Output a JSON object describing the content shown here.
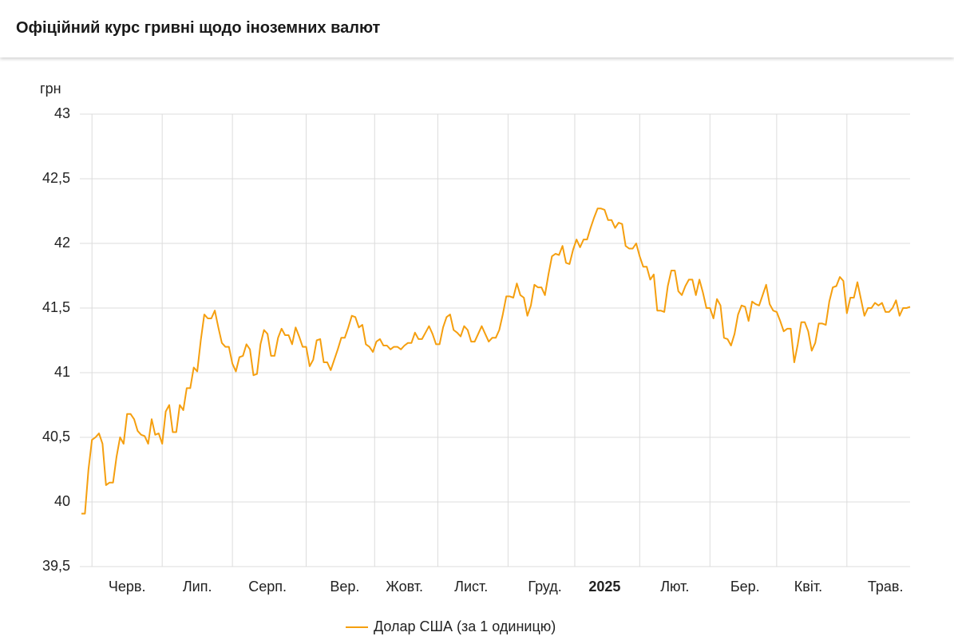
{
  "chart_data": {
    "type": "line",
    "title": "Офіційний курс гривні щодо іноземних валют",
    "y_label": "грн",
    "ylim": [
      39.5,
      43
    ],
    "yticks": [
      {
        "value": 39.5,
        "label": "39,5"
      },
      40,
      {
        "value": 40.5,
        "label": "40,5"
      },
      41,
      {
        "value": 41.5,
        "label": "41,5"
      },
      42,
      {
        "value": 42.5,
        "label": "42,5"
      },
      43
    ],
    "grid": true,
    "categories": [
      null,
      null,
      null,
      null,
      null,
      null,
      null,
      null,
      null,
      null,
      null,
      null,
      null,
      "Черв.",
      null,
      null,
      null,
      null,
      null,
      null,
      null,
      null,
      null,
      null,
      null,
      null,
      null,
      null,
      null,
      null,
      null,
      null,
      null,
      "Лип.",
      null,
      null,
      null,
      null,
      null,
      null,
      null,
      null,
      null,
      null,
      null,
      null,
      null,
      null,
      null,
      null,
      null,
      null,
      null,
      "Серп.",
      null,
      null,
      null,
      null,
      null,
      null,
      null,
      null,
      null,
      null,
      null,
      null,
      null,
      null,
      null,
      null,
      null,
      null,
      null,
      null,
      null,
      "Вер.",
      null,
      null,
      null,
      null,
      null,
      null,
      null,
      null,
      null,
      null,
      null,
      null,
      null,
      null,
      null,
      null,
      "Жовт.",
      null,
      null,
      null,
      null,
      null,
      null,
      null,
      null,
      null,
      null,
      null,
      null,
      null,
      null,
      null,
      null,
      null,
      null,
      "Лист.",
      null,
      null,
      null,
      null,
      null,
      null,
      null,
      null,
      null,
      null,
      null,
      null,
      null,
      null,
      null,
      null,
      null,
      null,
      null,
      null,
      "Груд.",
      null,
      null,
      null,
      null,
      null,
      null,
      null,
      null,
      null,
      null,
      null,
      null,
      null,
      null,
      null,
      null,
      "2025",
      null,
      null,
      null,
      null,
      null,
      null,
      null,
      null,
      null,
      null,
      null,
      null,
      null,
      null,
      null,
      null,
      null,
      null,
      null,
      "Лют.",
      null,
      null,
      null,
      null,
      null,
      null,
      null,
      null,
      null,
      null,
      null,
      null,
      null,
      null,
      null,
      null,
      null,
      null,
      null,
      "Бер.",
      null,
      null,
      null,
      null,
      null,
      null,
      null,
      null,
      null,
      null,
      null,
      null,
      null,
      null,
      null,
      null,
      null,
      "Квіт.",
      null,
      null,
      null,
      null,
      null,
      null,
      null,
      null,
      null,
      null,
      null,
      null,
      null,
      null,
      null,
      null,
      null,
      null,
      null,
      null,
      null,
      "Трав.",
      null,
      null,
      null,
      null,
      null,
      null,
      null
    ],
    "series": [
      {
        "name": "Долар США (за 1 одиницю)",
        "color": "#f59f0f",
        "values": [
          39.91,
          39.91,
          40.25,
          40.48,
          40.5,
          40.53,
          40.45,
          40.13,
          40.15,
          40.15,
          40.35,
          40.5,
          40.45,
          40.68,
          40.68,
          40.64,
          40.55,
          40.52,
          40.51,
          40.45,
          40.64,
          40.52,
          40.53,
          40.45,
          40.7,
          40.75,
          40.54,
          40.54,
          40.75,
          40.71,
          40.88,
          40.88,
          41.04,
          41.01,
          41.25,
          41.45,
          41.42,
          41.42,
          41.48,
          41.35,
          41.23,
          41.2,
          41.2,
          41.07,
          41.01,
          41.12,
          41.13,
          41.22,
          41.18,
          40.98,
          40.99,
          41.22,
          41.33,
          41.3,
          41.13,
          41.13,
          41.27,
          41.34,
          41.29,
          41.29,
          41.22,
          41.35,
          41.28,
          41.2,
          41.2,
          41.05,
          41.1,
          41.25,
          41.26,
          41.08,
          41.08,
          41.02,
          41.1,
          41.18,
          41.27,
          41.27,
          41.35,
          41.44,
          41.43,
          41.35,
          41.37,
          41.22,
          41.2,
          41.16,
          41.24,
          41.26,
          41.21,
          41.21,
          41.18,
          41.2,
          41.2,
          41.18,
          41.21,
          41.23,
          41.23,
          41.31,
          41.26,
          41.26,
          41.31,
          41.36,
          41.3,
          41.22,
          41.22,
          41.35,
          41.43,
          41.45,
          41.33,
          41.31,
          41.28,
          41.36,
          41.33,
          41.24,
          41.24,
          41.3,
          41.36,
          41.3,
          41.24,
          41.27,
          41.27,
          41.33,
          41.45,
          41.59,
          41.59,
          41.58,
          41.69,
          41.6,
          41.58,
          41.44,
          41.52,
          41.68,
          41.66,
          41.66,
          41.6,
          41.76,
          41.9,
          41.92,
          41.91,
          41.98,
          41.85,
          41.84,
          41.95,
          42.03,
          41.97,
          42.03,
          42.03,
          42.12,
          42.2,
          42.27,
          42.27,
          42.26,
          42.18,
          42.18,
          42.12,
          42.16,
          42.15,
          41.98,
          41.96,
          41.96,
          42.0,
          41.9,
          41.82,
          41.82,
          41.72,
          41.76,
          41.48,
          41.48,
          41.47,
          41.67,
          41.79,
          41.79,
          41.63,
          41.6,
          41.67,
          41.72,
          41.72,
          41.6,
          41.72,
          41.62,
          41.5,
          41.5,
          41.42,
          41.57,
          41.52,
          41.27,
          41.26,
          41.21,
          41.3,
          41.45,
          41.52,
          41.51,
          41.4,
          41.55,
          41.53,
          41.52,
          41.6,
          41.68,
          41.53,
          41.48,
          41.47,
          41.4,
          41.32,
          41.34,
          41.34,
          41.08,
          41.22,
          41.39,
          41.39,
          41.32,
          41.17,
          41.23,
          41.38,
          41.38,
          41.37,
          41.55,
          41.66,
          41.67,
          41.74,
          41.71,
          41.46,
          41.58,
          41.58,
          41.7,
          41.57,
          41.44,
          41.5,
          41.5,
          41.54,
          41.52,
          41.54,
          41.47,
          41.47,
          41.5,
          41.56,
          41.44,
          41.5,
          41.5,
          41.51
        ]
      }
    ]
  }
}
